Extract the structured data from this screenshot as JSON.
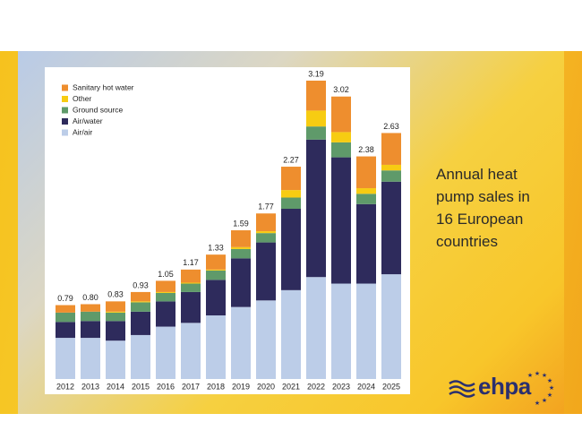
{
  "chart_data": {
    "type": "stacked_bar",
    "title": "Annual heat pump sales in 16 European countries",
    "categories": [
      "2012",
      "2013",
      "2014",
      "2015",
      "2016",
      "2017",
      "2018",
      "2019",
      "2020",
      "2021",
      "2022",
      "2023",
      "2024",
      "2025"
    ],
    "series": [
      {
        "name": "Air/air",
        "color": "#bccde8",
        "values": [
          0.44,
          0.44,
          0.41,
          0.47,
          0.56,
          0.6,
          0.68,
          0.77,
          0.84,
          0.95,
          1.09,
          1.02,
          1.02,
          1.12
        ]
      },
      {
        "name": "Air/water",
        "color": "#2e2b5c",
        "values": [
          0.17,
          0.18,
          0.21,
          0.25,
          0.27,
          0.33,
          0.38,
          0.52,
          0.62,
          0.87,
          1.47,
          1.35,
          0.85,
          0.99
        ]
      },
      {
        "name": "Ground source",
        "color": "#5f9a6a",
        "values": [
          0.1,
          0.1,
          0.09,
          0.1,
          0.09,
          0.09,
          0.1,
          0.1,
          0.1,
          0.12,
          0.14,
          0.16,
          0.11,
          0.12
        ]
      },
      {
        "name": "Other",
        "color": "#f7cc12",
        "values": [
          0.0,
          0.0,
          0.01,
          0.01,
          0.01,
          0.01,
          0.01,
          0.02,
          0.02,
          0.08,
          0.17,
          0.11,
          0.06,
          0.06
        ]
      },
      {
        "name": "Sanitary hot water",
        "color": "#ee8e2e",
        "values": [
          0.08,
          0.08,
          0.11,
          0.1,
          0.12,
          0.14,
          0.16,
          0.18,
          0.19,
          0.25,
          0.32,
          0.38,
          0.34,
          0.34
        ]
      }
    ],
    "totals": {
      "values": [
        0.79,
        0.8,
        0.83,
        0.93,
        1.05,
        1.17,
        1.33,
        1.59,
        1.77,
        2.27,
        3.19,
        3.02,
        2.38,
        2.63
      ],
      "value_labels": [
        "0.79",
        "0.80",
        "0.83",
        "0.93",
        "1.05",
        "1.17",
        "1.33",
        "1.59",
        "1.77",
        "2.27",
        "3.19",
        "3.02",
        "2.38",
        "2.63"
      ]
    },
    "legend": "top-left"
  },
  "logo": "ehpa"
}
